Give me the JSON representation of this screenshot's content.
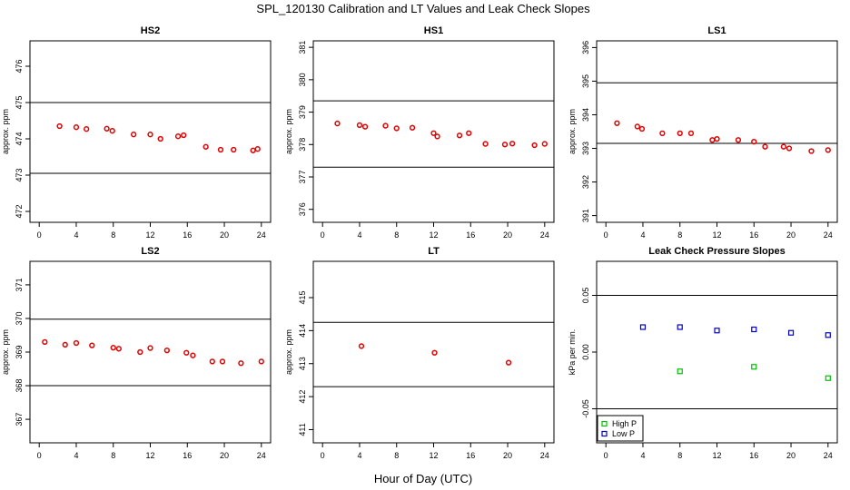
{
  "figure": {
    "title": "SPL_120130  Calibration and LT Values and Leak Check Slopes",
    "xlabel": "Hour of Day (UTC)"
  },
  "colors": {
    "calibration_points": "#e00000",
    "high_p": "#00c000",
    "low_p": "#0000cc",
    "reference_line": "#000000"
  },
  "chart_data": [
    {
      "type": "scatter",
      "title": "HS2",
      "ylabel": "approx. ppm",
      "xlim": [
        -1,
        25
      ],
      "ylim": [
        471.7,
        476.7
      ],
      "xticks": [
        0,
        4,
        8,
        12,
        16,
        20,
        24
      ],
      "yticks": [
        472,
        473,
        474,
        475,
        476
      ],
      "hlines": [
        473.05,
        475.0
      ],
      "series": [
        {
          "marker": "circle",
          "color": "#e00000",
          "x": [
            2.2,
            4.0,
            5.1,
            7.3,
            7.9,
            10.2,
            12.0,
            13.1,
            15.0,
            15.6,
            18.0,
            19.6,
            21.0,
            23.1,
            23.6
          ],
          "y": [
            474.35,
            474.32,
            474.27,
            474.28,
            474.22,
            474.12,
            474.12,
            474.0,
            474.07,
            474.1,
            473.78,
            473.7,
            473.7,
            473.68,
            473.72
          ]
        }
      ]
    },
    {
      "type": "scatter",
      "title": "HS1",
      "ylabel": "approx. ppm",
      "xlim": [
        -1,
        25
      ],
      "ylim": [
        375.6,
        381.2
      ],
      "xticks": [
        0,
        4,
        8,
        12,
        16,
        20,
        24
      ],
      "yticks": [
        376,
        377,
        378,
        379,
        380,
        381
      ],
      "hlines": [
        377.3,
        379.35
      ],
      "series": [
        {
          "marker": "circle",
          "color": "#e00000",
          "x": [
            1.6,
            4.0,
            4.6,
            6.8,
            8.0,
            9.7,
            12.0,
            12.4,
            14.8,
            15.8,
            17.6,
            19.7,
            20.5,
            22.9,
            24.0
          ],
          "y": [
            378.65,
            378.6,
            378.55,
            378.58,
            378.5,
            378.52,
            378.35,
            378.25,
            378.28,
            378.35,
            378.02,
            378.0,
            378.03,
            377.98,
            378.02
          ]
        }
      ]
    },
    {
      "type": "scatter",
      "title": "LS1",
      "ylabel": "approx. ppm",
      "xlim": [
        -1,
        25
      ],
      "ylim": [
        390.8,
        396.2
      ],
      "xticks": [
        0,
        4,
        8,
        12,
        16,
        20,
        24
      ],
      "yticks": [
        391,
        392,
        393,
        394,
        395,
        396
      ],
      "hlines": [
        393.15,
        394.95
      ],
      "series": [
        {
          "marker": "circle",
          "color": "#e00000",
          "x": [
            1.2,
            3.4,
            3.9,
            6.1,
            8.0,
            9.2,
            11.5,
            12.0,
            14.3,
            16.0,
            17.2,
            19.2,
            19.8,
            22.2,
            24.0
          ],
          "y": [
            393.75,
            393.65,
            393.58,
            393.45,
            393.45,
            393.45,
            393.25,
            393.28,
            393.25,
            393.2,
            393.05,
            393.05,
            393.0,
            392.92,
            392.95
          ]
        }
      ]
    },
    {
      "type": "scatter",
      "title": "LS2",
      "ylabel": "approx. ppm",
      "xlim": [
        -1,
        25
      ],
      "ylim": [
        366.3,
        371.7
      ],
      "xticks": [
        0,
        4,
        8,
        12,
        16,
        20,
        24
      ],
      "yticks": [
        367,
        368,
        369,
        370,
        371
      ],
      "hlines": [
        368.0,
        369.98
      ],
      "series": [
        {
          "marker": "circle",
          "color": "#e00000",
          "x": [
            0.6,
            2.8,
            4.0,
            5.7,
            8.0,
            8.6,
            10.9,
            12.0,
            13.8,
            15.9,
            16.6,
            18.7,
            19.8,
            21.8,
            24.0
          ],
          "y": [
            369.3,
            369.22,
            369.27,
            369.2,
            369.13,
            369.1,
            369.0,
            369.12,
            369.05,
            368.98,
            368.9,
            368.72,
            368.72,
            368.67,
            368.72
          ]
        }
      ]
    },
    {
      "type": "scatter",
      "title": "LT",
      "ylabel": "approx. ppm",
      "xlim": [
        -1,
        25
      ],
      "ylim": [
        410.6,
        416.1
      ],
      "xticks": [
        0,
        4,
        8,
        12,
        16,
        20,
        24
      ],
      "yticks": [
        411,
        412,
        413,
        414,
        415
      ],
      "hlines": [
        412.3,
        414.25
      ],
      "series": [
        {
          "marker": "circle",
          "color": "#e00000",
          "x": [
            4.2,
            12.1,
            20.1
          ],
          "y": [
            413.53,
            413.33,
            413.03
          ]
        }
      ]
    },
    {
      "type": "scatter",
      "title": "Leak Check Pressure Slopes",
      "ylabel": "kPa per min.",
      "xlim": [
        -1,
        25
      ],
      "ylim": [
        -0.08,
        0.08
      ],
      "xticks": [
        0,
        4,
        8,
        12,
        16,
        20,
        24
      ],
      "yticks": [
        -0.05,
        0.0,
        0.05
      ],
      "ytick_labels": [
        "-0.05",
        "0.00",
        "0.05"
      ],
      "hlines": [
        -0.05,
        0.05
      ],
      "legend": {
        "position": "bottom-left",
        "entries": [
          "High P",
          "Low P"
        ]
      },
      "series": [
        {
          "name": "High P",
          "marker": "square",
          "color": "#00c000",
          "x": [
            8.0,
            16.0,
            24.0
          ],
          "y": [
            -0.017,
            -0.013,
            -0.023
          ]
        },
        {
          "name": "Low P",
          "marker": "square",
          "color": "#0000cc",
          "x": [
            4.0,
            8.0,
            12.0,
            16.0,
            20.0,
            24.0
          ],
          "y": [
            0.022,
            0.022,
            0.019,
            0.02,
            0.017,
            0.015
          ]
        }
      ]
    }
  ]
}
